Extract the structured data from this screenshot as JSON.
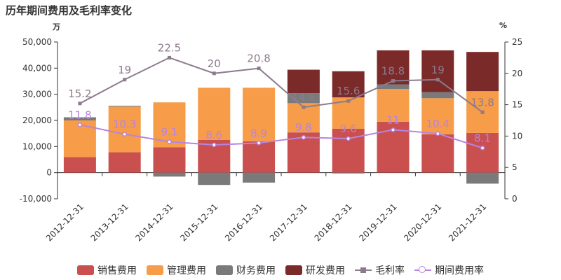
{
  "chart_data": {
    "type": "bar",
    "title": "历年期间费用及毛利率变化",
    "left_unit": "万",
    "right_unit": "%",
    "categories": [
      "2012-12-31",
      "2013-12-31",
      "2014-12-31",
      "2015-12-31",
      "2016-12-31",
      "2017-12-31",
      "2018-12-31",
      "2019-12-31",
      "2020-12-31",
      "2021-12-31"
    ],
    "left_axis": {
      "min": -10000,
      "max": 50000,
      "ticks": [
        -10000,
        0,
        10000,
        20000,
        30000,
        40000,
        50000
      ],
      "tick_labels": [
        "-10,000",
        "0",
        "10,000",
        "20,000",
        "30,000",
        "40,000",
        "50,000"
      ]
    },
    "right_axis": {
      "min": 0,
      "max": 25,
      "ticks": [
        0,
        5,
        10,
        15,
        20,
        25
      ],
      "tick_labels": [
        "0",
        "5",
        "10",
        "15",
        "20",
        "25"
      ]
    },
    "bar_series": [
      {
        "name": "销售费用",
        "color": "#c9504f",
        "values": [
          6000,
          7800,
          9700,
          12500,
          12000,
          15400,
          16800,
          19500,
          14700,
          15200
        ]
      },
      {
        "name": "管理费用",
        "color": "#f79c48",
        "values": [
          14000,
          17500,
          17200,
          20000,
          20500,
          11200,
          12000,
          12500,
          13800,
          16000
        ]
      },
      {
        "name": "财务费用",
        "color": "#7a7a7a",
        "values": [
          1200,
          300,
          -1500,
          -4700,
          -3800,
          3800,
          -300,
          1800,
          2300,
          -4200
        ]
      },
      {
        "name": "研发费用",
        "color": "#7b2a2a",
        "values": [
          0,
          0,
          0,
          0,
          0,
          9000,
          10000,
          13000,
          16000,
          15000
        ]
      }
    ],
    "line_series": [
      {
        "name": "毛利率",
        "color": "#8c7b8c",
        "marker": "square",
        "values": [
          15.2,
          19,
          22.5,
          20,
          20.8,
          14.6,
          15.6,
          18.8,
          19,
          13.8
        ],
        "labels": [
          "15.2",
          "19",
          "22.5",
          "20",
          "20.8",
          "14.6",
          "15.6",
          "18.8",
          "19",
          "13.8"
        ]
      },
      {
        "name": "期间费用率",
        "color": "#b784e0",
        "marker": "circle",
        "values": [
          11.8,
          10.3,
          9.1,
          8.6,
          8.9,
          9.8,
          9.6,
          11,
          10.4,
          8.1
        ],
        "labels": [
          "11.8",
          "10.3",
          "9.1",
          "8.6",
          "8.9",
          "9.8",
          "9.6",
          "11",
          "10.4",
          "8.1"
        ]
      }
    ],
    "legend": [
      "销售费用",
      "管理费用",
      "财务费用",
      "研发费用",
      "毛利率",
      "期间费用率"
    ],
    "grid": false
  }
}
